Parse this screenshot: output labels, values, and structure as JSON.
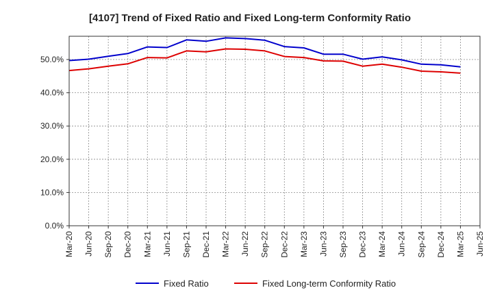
{
  "chart_data": {
    "type": "line",
    "title": "[4107]  Trend of Fixed Ratio and Fixed Long-term Conformity Ratio",
    "xlabel": "",
    "ylabel": "",
    "categories": [
      "Mar-20",
      "Jun-20",
      "Sep-20",
      "Dec-20",
      "Mar-21",
      "Jun-21",
      "Sep-21",
      "Dec-21",
      "Mar-22",
      "Jun-22",
      "Sep-22",
      "Dec-22",
      "Mar-23",
      "Jun-23",
      "Sep-23",
      "Dec-23",
      "Mar-24",
      "Jun-24",
      "Sep-24",
      "Dec-24",
      "Mar-25",
      "Jun-25"
    ],
    "yticks": [
      0,
      10,
      20,
      30,
      40,
      50
    ],
    "ytick_labels": [
      "0.0%",
      "10.0%",
      "20.0%",
      "30.0%",
      "40.0%",
      "50.0%"
    ],
    "ylim": [
      0,
      57
    ],
    "grid": true,
    "legend_position": "bottom",
    "series": [
      {
        "name": "Fixed Ratio",
        "color": "#0000cc",
        "values": [
          49.7,
          50.1,
          51.0,
          51.8,
          53.8,
          53.6,
          55.9,
          55.5,
          56.5,
          56.3,
          55.8,
          53.9,
          53.5,
          51.6,
          51.6,
          50.1,
          50.8,
          49.9,
          48.6,
          48.4,
          47.8,
          null
        ]
      },
      {
        "name": "Fixed Long-term Conformity Ratio",
        "color": "#dd0000",
        "values": [
          46.7,
          47.2,
          48.0,
          48.7,
          50.6,
          50.5,
          52.6,
          52.3,
          53.2,
          53.1,
          52.6,
          50.9,
          50.6,
          49.6,
          49.5,
          48.0,
          48.6,
          47.7,
          46.5,
          46.3,
          45.9,
          null
        ]
      }
    ]
  }
}
